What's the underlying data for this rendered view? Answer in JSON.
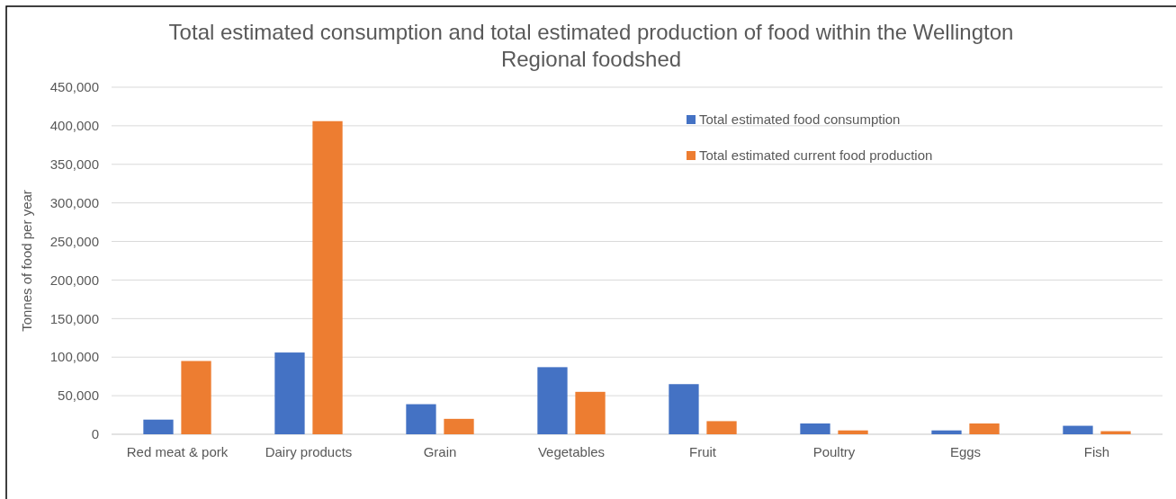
{
  "chart_data": {
    "type": "bar",
    "title": "Total estimated consumption and total estimated production of food within the Wellington Regional foodshed",
    "ylabel": "Tonnes of food per year",
    "categories": [
      "Red meat & pork",
      "Dairy products",
      "Grain",
      "Vegetables",
      "Fruit",
      "Poultry",
      "Eggs",
      "Fish"
    ],
    "series": [
      {
        "name": "Total estimated food consumption",
        "color": "#4472c4",
        "values": [
          19000,
          106000,
          39000,
          87000,
          65000,
          14000,
          5000,
          11000
        ]
      },
      {
        "name": "Total estimated current food production",
        "color": "#ed7d31",
        "values": [
          95000,
          406000,
          20000,
          55000,
          17000,
          5000,
          14000,
          4000
        ]
      }
    ],
    "ylim": [
      0,
      450000
    ],
    "yticks": [
      {
        "value": 0,
        "label": "0"
      },
      {
        "value": 50000,
        "label": "50,000"
      },
      {
        "value": 100000,
        "label": "100,000"
      },
      {
        "value": 150000,
        "label": "150,000"
      },
      {
        "value": 200000,
        "label": "200,000"
      },
      {
        "value": 250000,
        "label": "250,000"
      },
      {
        "value": 300000,
        "label": "300,000"
      },
      {
        "value": 350000,
        "label": "350,000"
      },
      {
        "value": 400000,
        "label": "400,000"
      },
      {
        "value": 450000,
        "label": "450,000"
      }
    ],
    "grid": "y",
    "legend": "top right"
  }
}
